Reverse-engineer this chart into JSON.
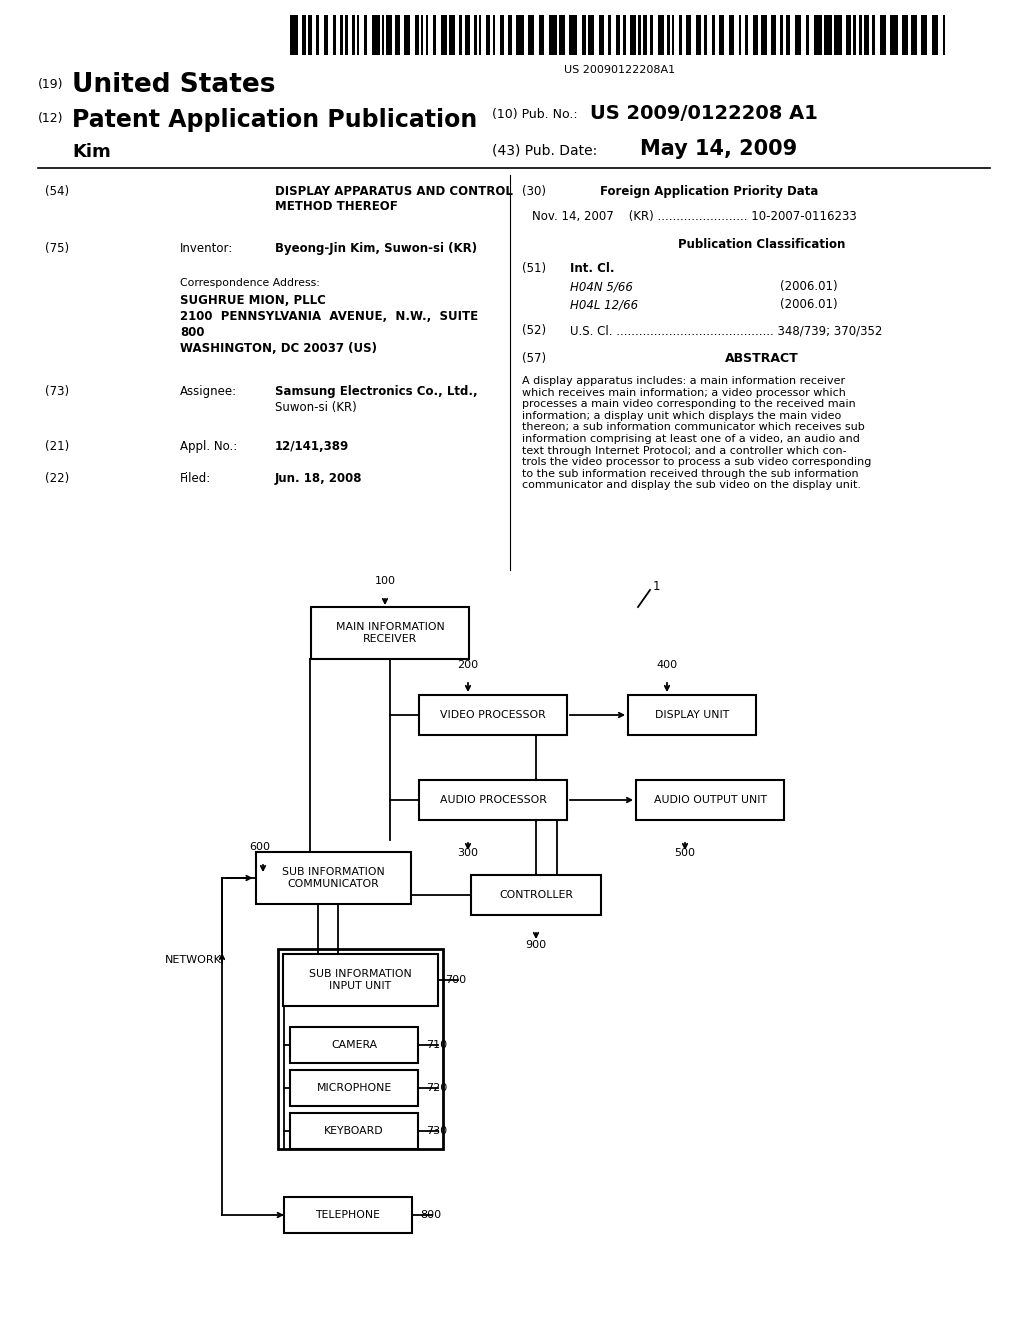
{
  "bg_color": "#ffffff",
  "barcode_text": "US 20090122208A1",
  "title_19": "(19)",
  "title_us": "United States",
  "title_12": "(12)",
  "title_pat": "Patent Application Publication",
  "title_10": "(10) Pub. No.:",
  "pub_no": "US 2009/0122208 A1",
  "title_kim": "Kim",
  "title_43": "(43) Pub. Date:",
  "pub_date": "May 14, 2009",
  "field54_label": "(54)",
  "field54_text": "DISPLAY APPARATUS AND CONTROL\nMETHOD THEREOF",
  "field30_label": "(30)",
  "field30_title": "Foreign Application Priority Data",
  "field30_data": "Nov. 14, 2007    (KR) ........................ 10-2007-0116233",
  "pub_class_title": "Publication Classification",
  "field51_label": "(51)",
  "field51_title": "Int. Cl.",
  "field51_h04n": "H04N 5/66",
  "field51_h04n_date": "(2006.01)",
  "field51_h04l": "H04L 12/66",
  "field51_h04l_date": "(2006.01)",
  "field52_label": "(52)",
  "field52_text": "U.S. Cl. .......................................... 348/739; 370/352",
  "field57_label": "(57)",
  "field57_title": "ABSTRACT",
  "abstract_text": "A display apparatus includes: a main information receiver\nwhich receives main information; a video processor which\nprocesses a main video corresponding to the received main\ninformation; a display unit which displays the main video\nthereon; a sub information communicator which receives sub\ninformation comprising at least one of a video, an audio and\ntext through Internet Protocol; and a controller which con-\ntrols the video processor to process a sub video corresponding\nto the sub information received through the sub information\ncommunicator and display the sub video on the display unit.",
  "field75_label": "(75)",
  "field75_title": "Inventor:",
  "field75_name": "Byeong-Jin Kim, Suwon-si (KR)",
  "corr_label": "Correspondence Address:",
  "corr_line1": "SUGHRUE MION, PLLC",
  "corr_line2": "2100  PENNSYLVANIA  AVENUE,  N.W.,  SUITE",
  "corr_line3": "800",
  "corr_line4": "WASHINGTON, DC 20037 (US)",
  "field73_label": "(73)",
  "field73_title": "Assignee:",
  "field73_name": "Samsung Electronics Co., Ltd.,",
  "field73_loc": "Suwon-si (KR)",
  "field21_label": "(21)",
  "field21_title": "Appl. No.:",
  "field21_no": "12/141,389",
  "field22_label": "(22)",
  "field22_title": "Filed:",
  "field22_date": "Jun. 18, 2008"
}
